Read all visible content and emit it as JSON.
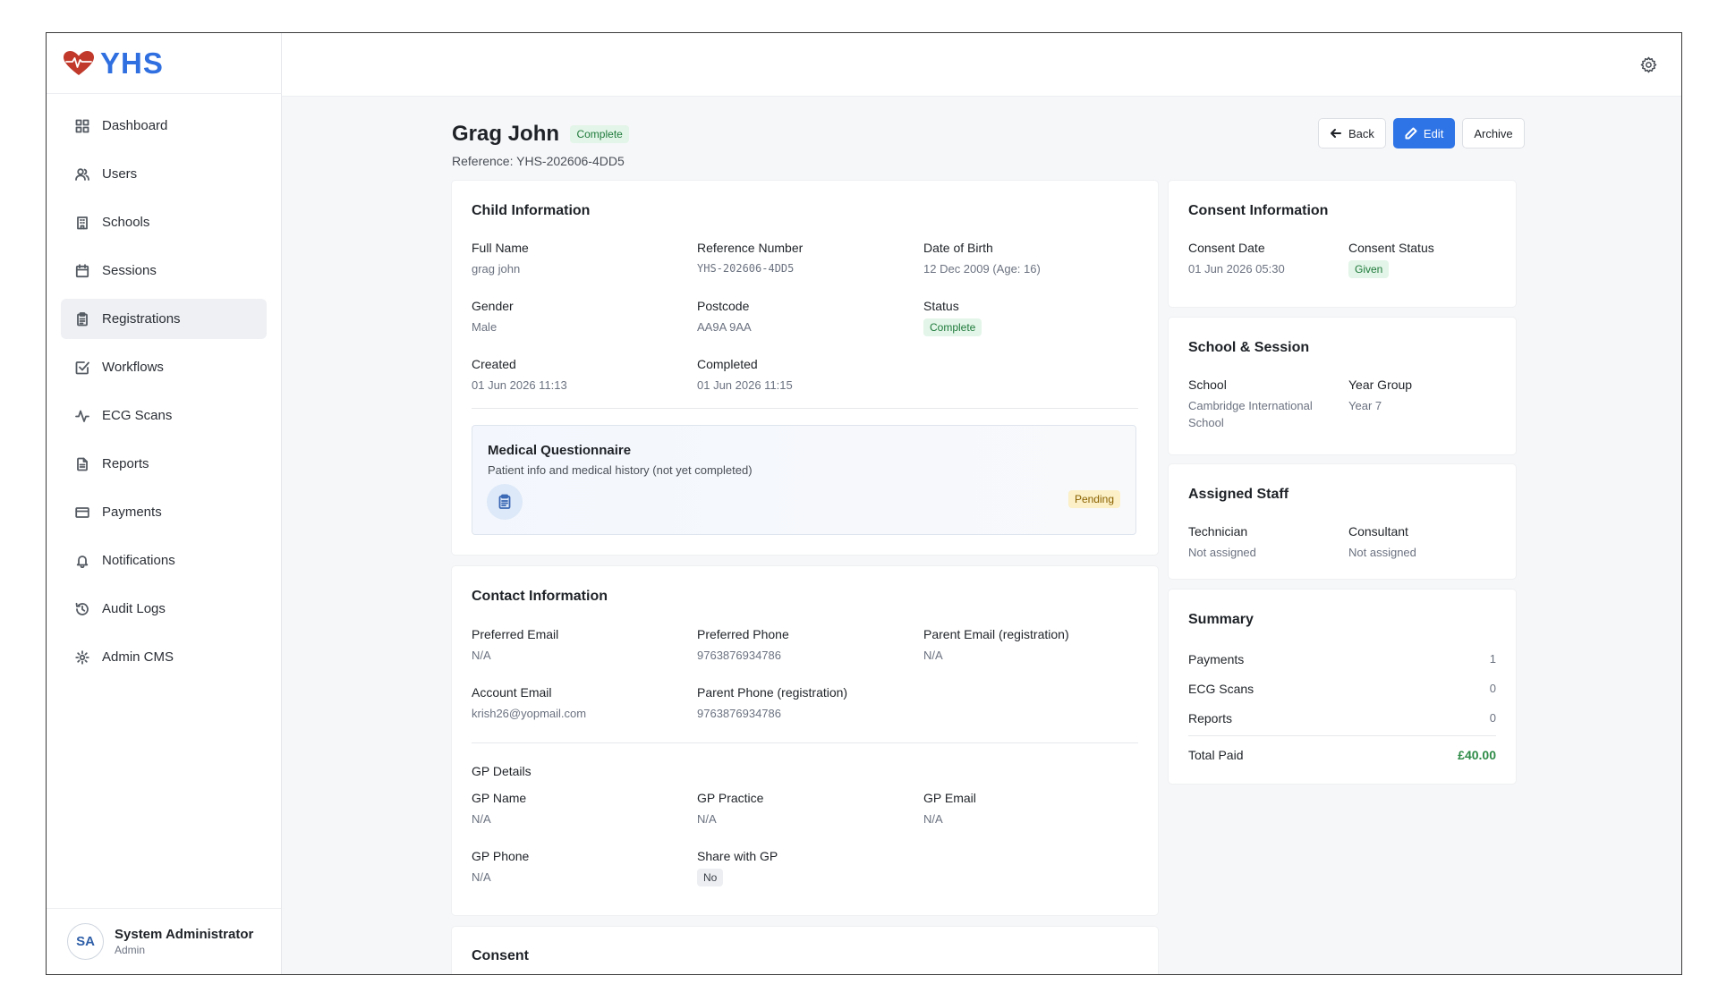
{
  "app": {
    "name": "YHS"
  },
  "sidebar": {
    "items": [
      {
        "label": "Dashboard",
        "icon": "grid-icon"
      },
      {
        "label": "Users",
        "icon": "users-icon"
      },
      {
        "label": "Schools",
        "icon": "building-icon"
      },
      {
        "label": "Sessions",
        "icon": "calendar-icon"
      },
      {
        "label": "Registrations",
        "icon": "clipboard-icon",
        "active": true
      },
      {
        "label": "Workflows",
        "icon": "checkbox-icon"
      },
      {
        "label": "ECG Scans",
        "icon": "activity-icon"
      },
      {
        "label": "Reports",
        "icon": "file-icon"
      },
      {
        "label": "Payments",
        "icon": "card-icon"
      },
      {
        "label": "Notifications",
        "icon": "bell-icon"
      },
      {
        "label": "Audit Logs",
        "icon": "history-icon"
      },
      {
        "label": "Admin CMS",
        "icon": "gear-icon"
      }
    ],
    "user": {
      "initials": "SA",
      "name": "System Administrator",
      "role": "Admin"
    }
  },
  "header": {
    "title": "Grag John",
    "status": "Complete",
    "reference": "Reference: YHS-202606-4DD5",
    "actions": {
      "back": "Back",
      "edit": "Edit",
      "archive": "Archive"
    }
  },
  "child_info": {
    "title": "Child Information",
    "full_name_label": "Full Name",
    "full_name": "grag john",
    "ref_label": "Reference Number",
    "ref": "YHS-202606-4DD5",
    "dob_label": "Date of Birth",
    "dob": "12 Dec 2009 (Age: 16)",
    "gender_label": "Gender",
    "gender": "Male",
    "postcode_label": "Postcode",
    "postcode": "AA9A 9AA",
    "status_label": "Status",
    "status": "Complete",
    "created_label": "Created",
    "created": "01 Jun 2026 11:13",
    "completed_label": "Completed",
    "completed": "01 Jun 2026 11:15",
    "questionnaire": {
      "title": "Medical Questionnaire",
      "subtitle": "Patient info and medical history (not yet completed)",
      "status": "Pending"
    }
  },
  "contact_info": {
    "title": "Contact Information",
    "pref_email_label": "Preferred Email",
    "pref_email": "N/A",
    "pref_phone_label": "Preferred Phone",
    "pref_phone": "9763876934786",
    "parent_email_label": "Parent Email (registration)",
    "parent_email": "N/A",
    "account_email_label": "Account Email",
    "account_email": "krish26@yopmail.com",
    "parent_phone_label": "Parent Phone (registration)",
    "parent_phone": "9763876934786",
    "gp_heading": "GP Details",
    "gp_name_label": "GP Name",
    "gp_name": "N/A",
    "gp_practice_label": "GP Practice",
    "gp_practice": "N/A",
    "gp_email_label": "GP Email",
    "gp_email": "N/A",
    "gp_phone_label": "GP Phone",
    "gp_phone": "N/A",
    "share_gp_label": "Share with GP",
    "share_gp": "No"
  },
  "consent_card": {
    "title": "Consent"
  },
  "consent_info": {
    "title": "Consent Information",
    "date_label": "Consent Date",
    "date": "01 Jun 2026 05:30",
    "status_label": "Consent Status",
    "status": "Given"
  },
  "school_session": {
    "title": "School & Session",
    "school_label": "School",
    "school": "Cambridge International School",
    "year_label": "Year Group",
    "year": "Year 7"
  },
  "assigned_staff": {
    "title": "Assigned Staff",
    "tech_label": "Technician",
    "tech": "Not assigned",
    "consultant_label": "Consultant",
    "consultant": "Not assigned"
  },
  "summary": {
    "title": "Summary",
    "payments_label": "Payments",
    "payments": "1",
    "ecg_label": "ECG Scans",
    "ecg": "0",
    "reports_label": "Reports",
    "reports": "0",
    "total_label": "Total Paid",
    "total": "£40.00"
  },
  "colors": {
    "accent": "#2f74e6",
    "brand": "#2f6fe0",
    "logo_heart": "#c0392b",
    "success": "#2e8b47"
  }
}
